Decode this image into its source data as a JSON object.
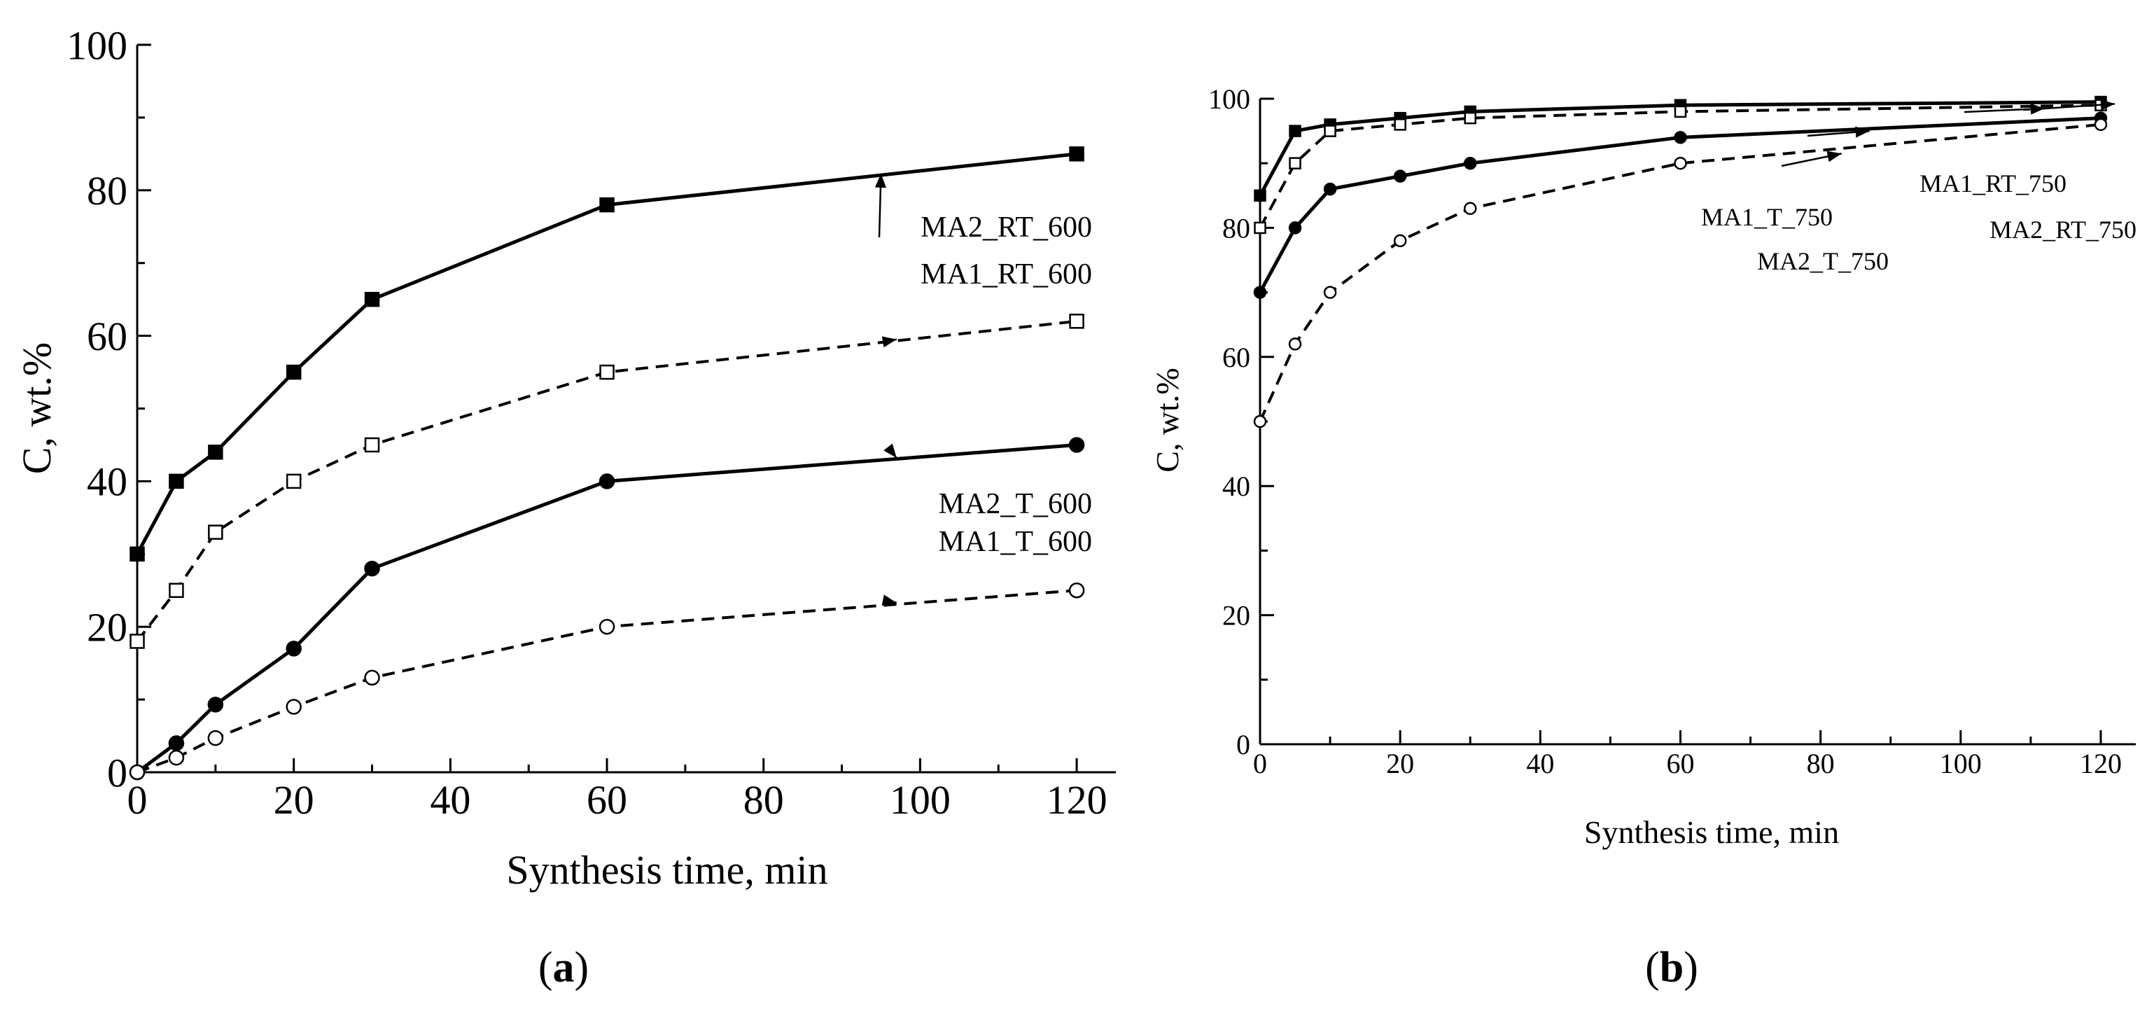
{
  "chart_data": [
    {
      "type": "line",
      "panel": "a",
      "title": "",
      "xlabel": "Synthesis time, min",
      "ylabel": "C,  wt.%",
      "xlim": [
        0,
        125
      ],
      "ylim": [
        0,
        100
      ],
      "xticks": [
        0,
        20,
        40,
        60,
        80,
        100,
        120
      ],
      "yticks": [
        0,
        20,
        40,
        60,
        80,
        100
      ],
      "xtick_labels": [
        "0",
        "20",
        "40",
        "60",
        "80",
        "100",
        "120"
      ],
      "ytick_labels": [
        "0",
        "20",
        "40",
        "60",
        "80",
        "100"
      ],
      "x": [
        0,
        5,
        10,
        20,
        30,
        60,
        120
      ],
      "series": [
        {
          "name": "MA2_RT_600",
          "marker": "filled-square",
          "line": "solid",
          "values": [
            30,
            40,
            44,
            55,
            65,
            78,
            85
          ]
        },
        {
          "name": "MA1_RT_600",
          "marker": "open-square",
          "line": "dashed",
          "values": [
            18,
            25,
            33,
            40,
            45,
            55,
            62
          ]
        },
        {
          "name": "MA2_T_600",
          "marker": "filled-circle",
          "line": "solid",
          "values": [
            0,
            4,
            9.3,
            17,
            28,
            40,
            45
          ]
        },
        {
          "name": "MA1_T_600",
          "marker": "open-circle",
          "line": "dashed",
          "values": [
            0,
            2,
            4.7,
            9,
            13,
            20,
            25
          ]
        }
      ],
      "annotations": [
        {
          "text": "MA2_RT_600",
          "points_to": [
            95,
            82.3
          ],
          "label_at": [
            103,
            75
          ]
        },
        {
          "text": "MA1_RT_600",
          "points_to": [
            97,
            59.5
          ],
          "label_at": [
            103,
            68.5
          ]
        },
        {
          "text": "MA2_T_600",
          "points_to": [
            97,
            43.2
          ],
          "label_at": [
            103,
            36.5
          ]
        },
        {
          "text": "MA1_T_600",
          "points_to": [
            97,
            23.3
          ],
          "label_at": [
            103,
            31
          ]
        }
      ],
      "panel_label": {
        "open": "(",
        "letter": "a",
        "close": ")"
      }
    },
    {
      "type": "line",
      "panel": "b",
      "title": "",
      "xlabel": "Synthesis time, min",
      "ylabel": "C,  wt.%",
      "xlim": [
        0,
        125
      ],
      "ylim": [
        0,
        100
      ],
      "xticks": [
        0,
        20,
        40,
        60,
        80,
        100,
        120
      ],
      "yticks": [
        0,
        20,
        40,
        60,
        80,
        100
      ],
      "xtick_labels": [
        "0",
        "20",
        "40",
        "60",
        "80",
        "100",
        "120"
      ],
      "ytick_labels": [
        "0",
        "20",
        "40",
        "60",
        "80",
        "100"
      ],
      "x": [
        0,
        5,
        10,
        20,
        30,
        60,
        120
      ],
      "series": [
        {
          "name": "MA2_RT_750",
          "marker": "filled-square",
          "line": "solid",
          "values": [
            85,
            95,
            96,
            97,
            98,
            99,
            99.5
          ]
        },
        {
          "name": "MA1_RT_750",
          "marker": "open-square",
          "line": "dashed",
          "values": [
            80,
            90,
            95,
            96,
            97,
            98,
            99
          ]
        },
        {
          "name": "MA2_T_750",
          "marker": "filled-circle",
          "line": "solid",
          "values": [
            70,
            80,
            86,
            88,
            90,
            94,
            97
          ]
        },
        {
          "name": "MA1_T_750",
          "marker": "open-circle",
          "line": "dashed",
          "values": [
            50,
            62,
            70,
            78,
            83,
            90,
            96
          ]
        }
      ],
      "annotations": [
        {
          "text": "MA1_RT_750",
          "points_to": [
            112,
            98.5
          ],
          "label_at": [
            116,
            82.5
          ]
        },
        {
          "text": "MA2_RT_750",
          "points_to": [
            122,
            99.2
          ],
          "label_at": [
            126,
            75
          ]
        },
        {
          "text": "MA1_T_750",
          "points_to": [
            83,
            91.5
          ],
          "label_at": [
            79,
            79
          ]
        },
        {
          "text": "MA2_T_750",
          "points_to": [
            87,
            95
          ],
          "label_at": [
            91,
            74
          ]
        }
      ],
      "panel_label": {
        "open": "(",
        "letter": "b",
        "close": ")"
      }
    }
  ]
}
